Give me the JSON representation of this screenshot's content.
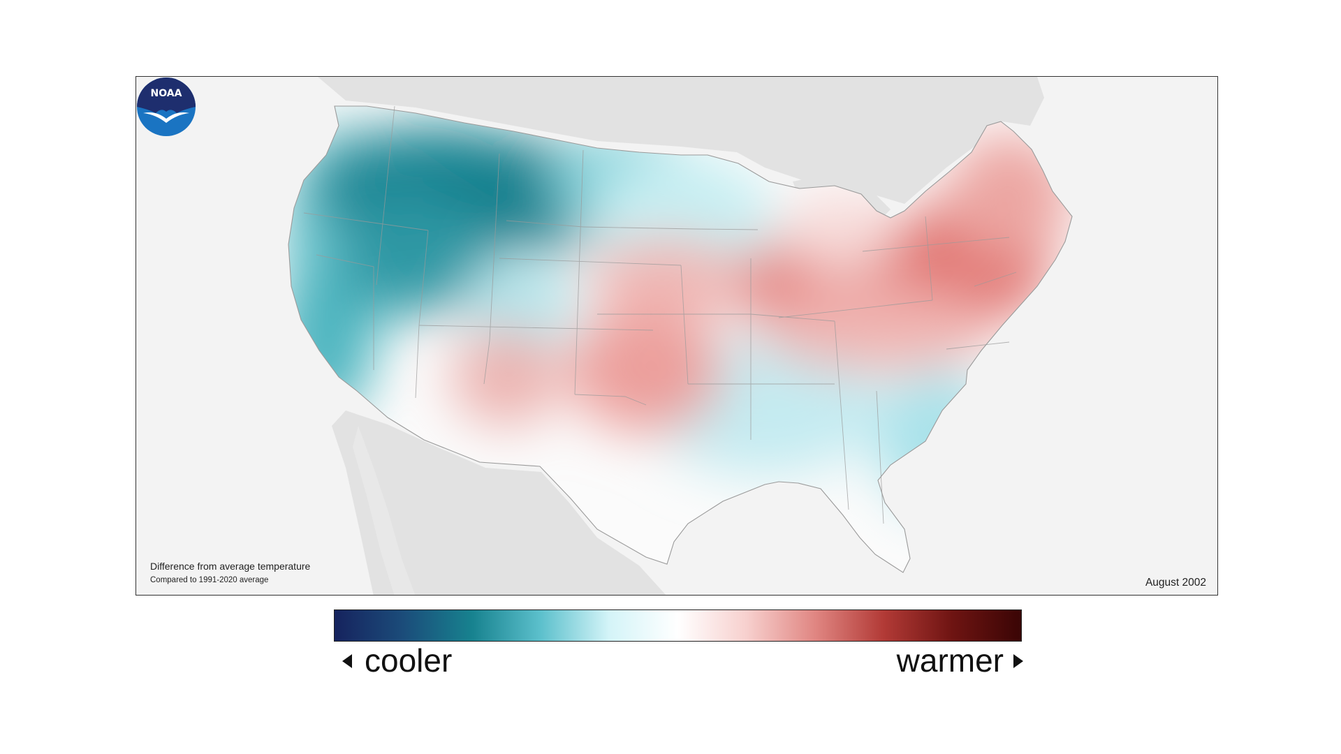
{
  "map": {
    "caption_title": "Difference from average temperature",
    "caption_subtitle": "Compared to 1991-2020 average",
    "date": "August 2002",
    "logo_text": "NOAA",
    "background_color": "#f3f3f3",
    "neighbor_land_color": "#e2e2e2",
    "anomaly_regions": [
      {
        "region": "Northern Rockies / Pacific Northwest",
        "anomaly": "strongly cooler",
        "color": "#1a8391"
      },
      {
        "region": "West Coast / California",
        "anomaly": "cooler",
        "color": "#5cbfc8"
      },
      {
        "region": "Northern Plains",
        "anomaly": "slightly cooler",
        "color": "#c4eef2"
      },
      {
        "region": "Texas / Gulf Coast",
        "anomaly": "slightly cooler",
        "color": "#bfeaf0"
      },
      {
        "region": "Florida",
        "anomaly": "slightly cooler",
        "color": "#a6e2ea"
      },
      {
        "region": "Ohio Valley / Mid-Atlantic",
        "anomaly": "warmer",
        "color": "#e27a78"
      },
      {
        "region": "Northeast",
        "anomaly": "warmer",
        "color": "#eb9c98"
      },
      {
        "region": "Southwest / New Mexico",
        "anomaly": "warmer",
        "color": "#f0aaa6"
      },
      {
        "region": "Central Plains / Kansas",
        "anomaly": "warmer",
        "color": "#eea6a2"
      }
    ]
  },
  "legend": {
    "cooler_label": "cooler",
    "warmer_label": "warmer",
    "colors": [
      "#16235e",
      "#1b4c7a",
      "#17828f",
      "#5cc0cc",
      "#d4f4f8",
      "#ffffff",
      "#f7d0ce",
      "#e08682",
      "#b23a36",
      "#6e1412",
      "#3a0505"
    ]
  }
}
